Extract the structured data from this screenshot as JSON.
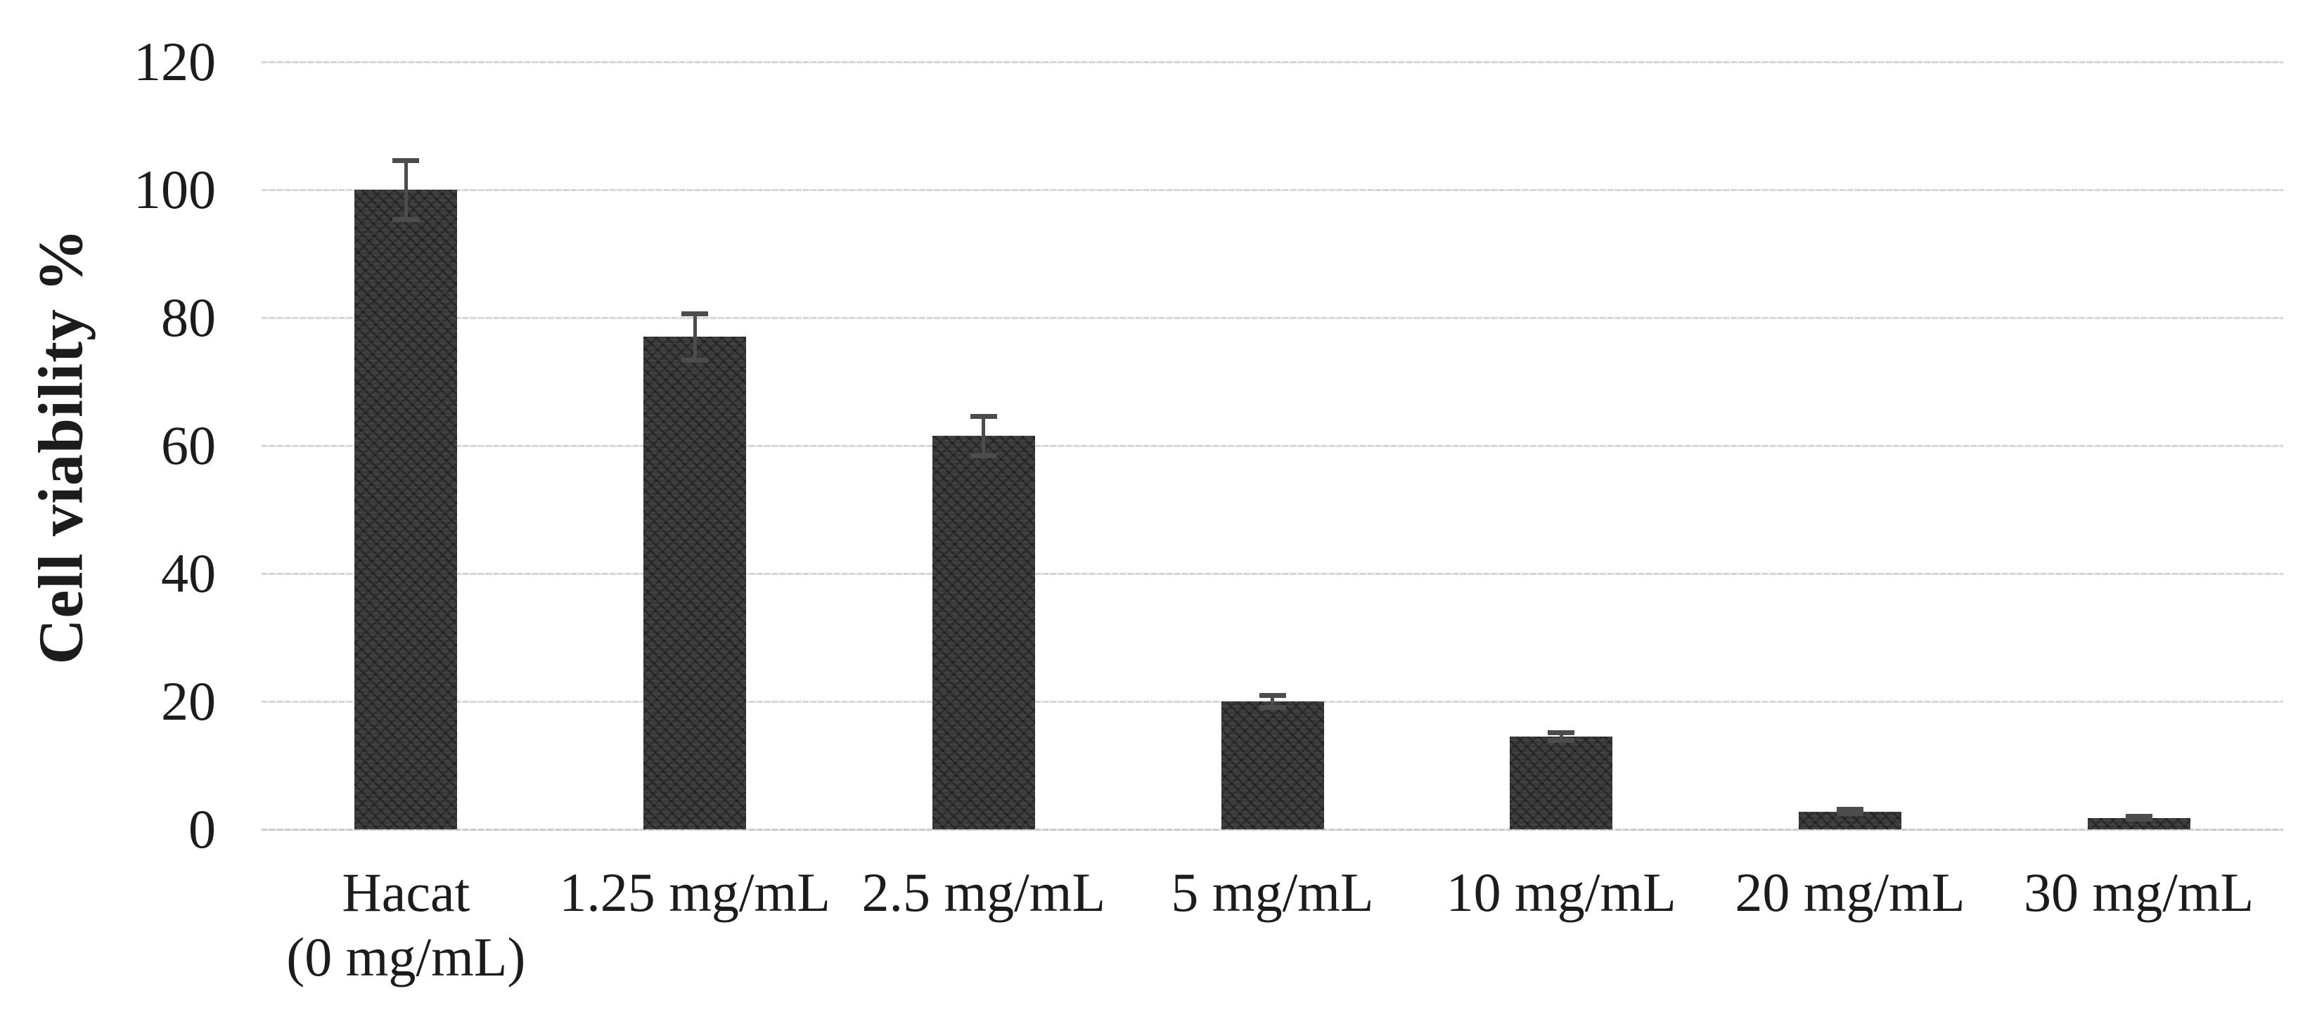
{
  "figure": {
    "background": "#ffffff",
    "text_color": "#1c1c1c"
  },
  "chart_data": {
    "type": "bar",
    "title": "",
    "xlabel": "",
    "ylabel": "Cell viability %",
    "ylim": [
      0,
      120
    ],
    "yticks": [
      0,
      20,
      40,
      60,
      80,
      100,
      120
    ],
    "grid": true,
    "legend": null,
    "categories": [
      "Hacat\n(0 mg/mL)",
      "1.25 mg/mL",
      "2.5 mg/mL",
      "5 mg/mL",
      "10 mg/mL",
      "20 mg/mL",
      "30 mg/mL"
    ],
    "values": [
      100,
      77,
      61.5,
      20,
      14.5,
      2.8,
      1.8
    ],
    "errors": [
      5,
      4,
      3.5,
      1.3,
      1,
      0.7,
      0.6
    ],
    "bar_color": "#3a3a3a",
    "error_bar_color": "#4c4c4c",
    "gridline_color": "#d6d6d6"
  }
}
